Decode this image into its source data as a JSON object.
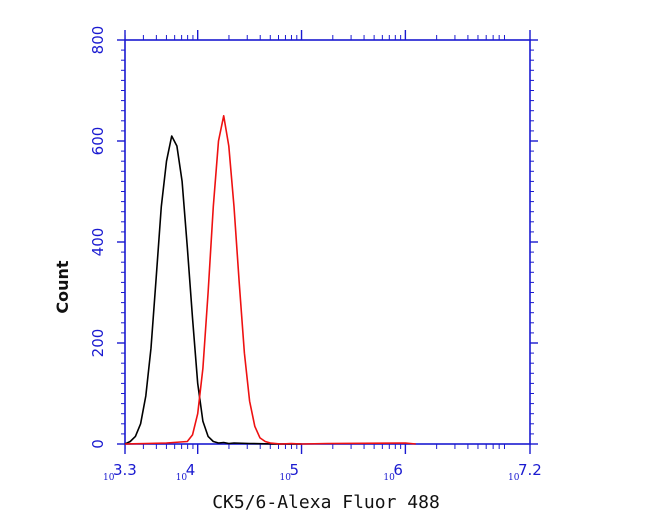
{
  "chart_data": {
    "type": "line",
    "title": "",
    "xlabel": "CK5/6-Alexa Fluor 488",
    "ylabel": "Count",
    "x_scale": "log10",
    "xlim": [
      3.3,
      7.2
    ],
    "ylim": [
      0,
      800
    ],
    "x_tick_labels": [
      {
        "base": "10",
        "exp": "3.3"
      },
      {
        "base": "10",
        "exp": "4"
      },
      {
        "base": "10",
        "exp": "5"
      },
      {
        "base": "10",
        "exp": "6"
      },
      {
        "base": "10",
        "exp": "7.2"
      }
    ],
    "y_ticks": [
      0,
      200,
      400,
      600,
      800
    ],
    "y_tick_labels": [
      "0",
      "200",
      "400",
      "600",
      "800"
    ],
    "grid": false,
    "legend": "none",
    "colors": {
      "axis": "#1a1ad0",
      "series_black": "#000000",
      "series_red": "#ee1111"
    },
    "series": [
      {
        "color": "#000000",
        "x": [
          3.3,
          3.35,
          3.4,
          3.45,
          3.5,
          3.55,
          3.6,
          3.65,
          3.7,
          3.75,
          3.8,
          3.85,
          3.9,
          3.95,
          4.0,
          4.05,
          4.1,
          4.15,
          4.2,
          4.25,
          4.3,
          4.35,
          4.5,
          4.75,
          5.0
        ],
        "y": [
          0,
          5,
          15,
          40,
          95,
          190,
          330,
          470,
          560,
          610,
          590,
          520,
          390,
          250,
          120,
          45,
          15,
          5,
          2,
          3,
          1,
          2,
          1,
          0,
          0
        ]
      },
      {
        "color": "#ee1111",
        "x": [
          3.3,
          3.5,
          3.7,
          3.9,
          3.95,
          4.0,
          4.05,
          4.1,
          4.15,
          4.2,
          4.25,
          4.3,
          4.35,
          4.4,
          4.45,
          4.5,
          4.55,
          4.6,
          4.65,
          4.7,
          4.75,
          4.8,
          4.9,
          5.0,
          5.25,
          6.0,
          6.1
        ],
        "y": [
          0,
          1,
          2,
          5,
          18,
          60,
          150,
          300,
          470,
          600,
          650,
          590,
          470,
          320,
          180,
          85,
          35,
          12,
          5,
          2,
          1,
          0,
          1,
          0,
          1,
          2,
          0
        ]
      }
    ]
  }
}
